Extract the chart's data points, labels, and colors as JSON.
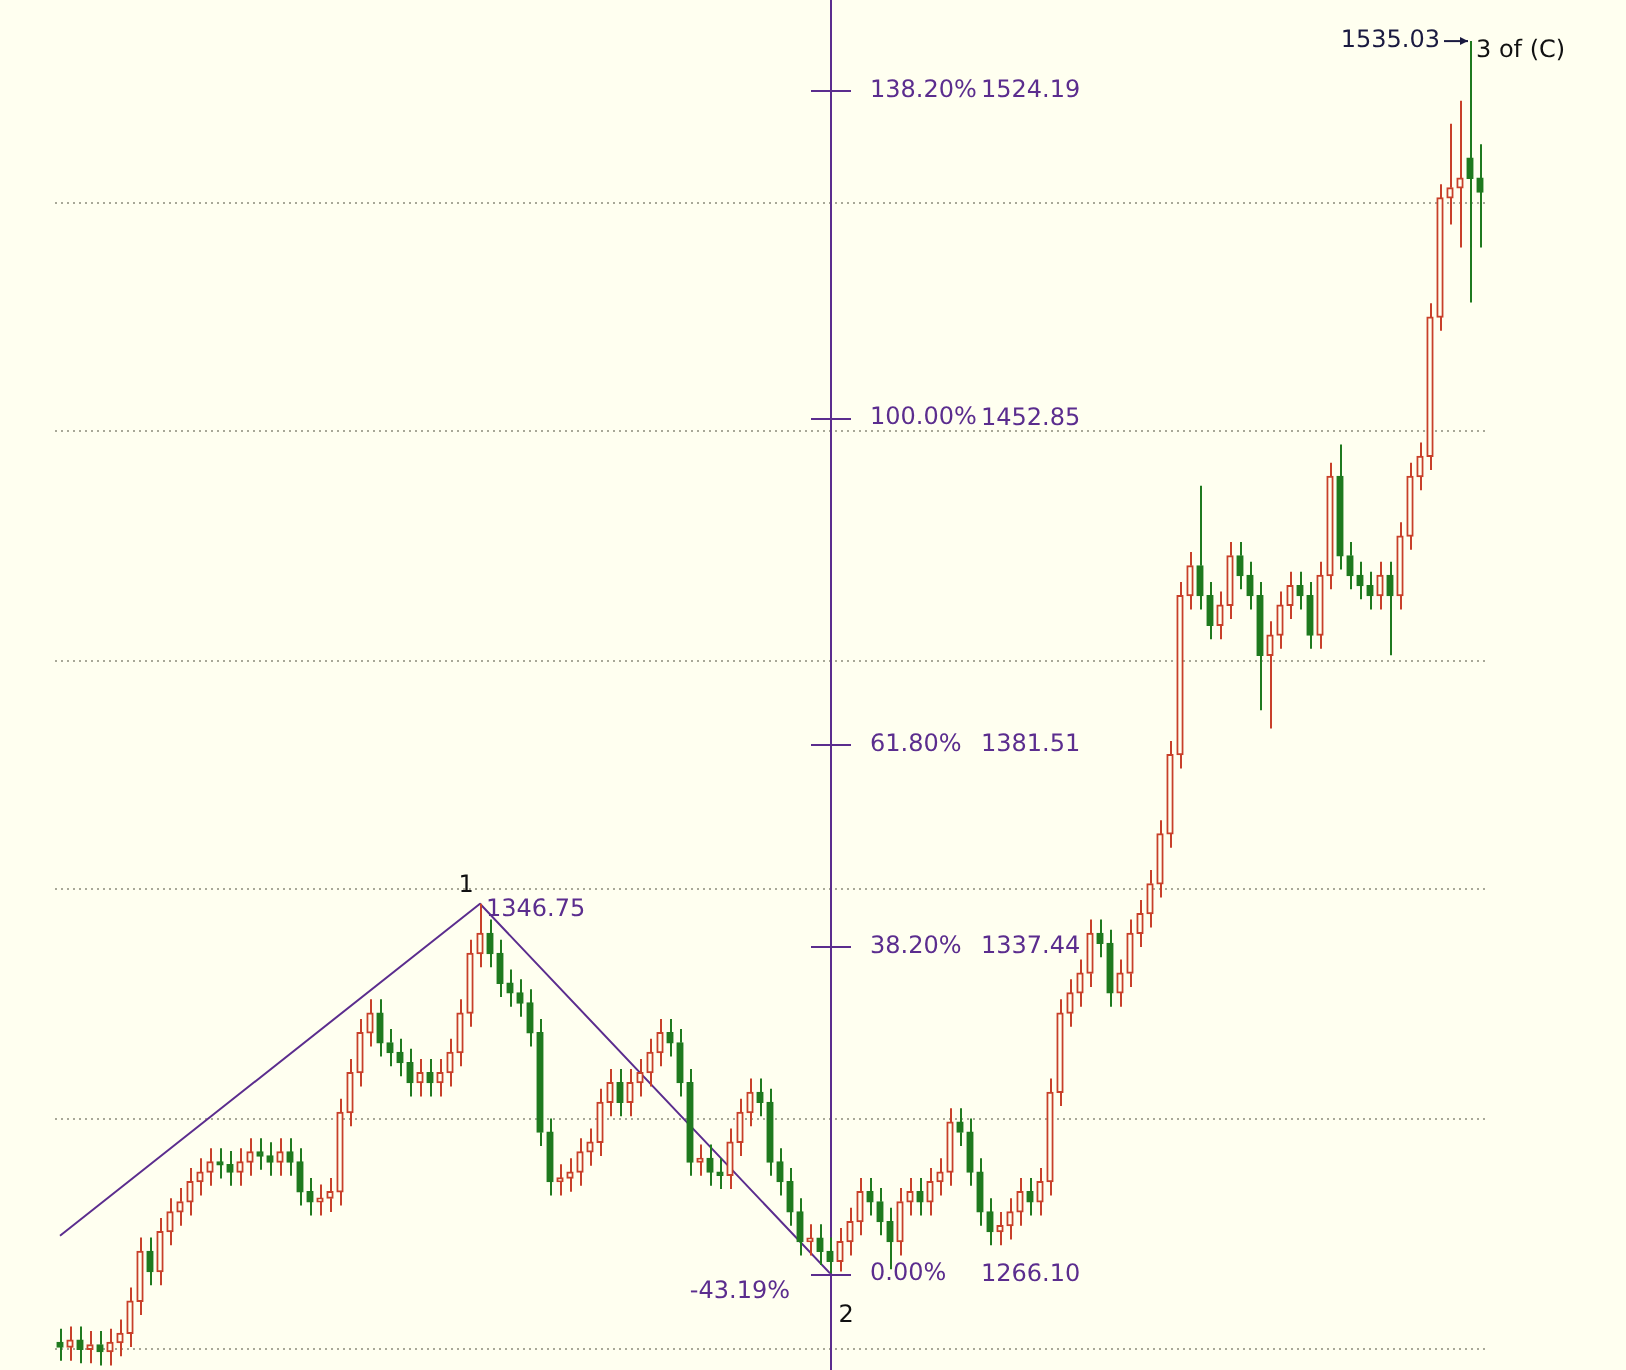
{
  "chart_data": {
    "type": "candlestick",
    "categories": [
      null,
      null,
      null,
      null,
      null,
      null,
      null,
      null,
      null,
      null,
      null,
      null,
      null,
      null,
      null,
      null,
      null,
      null,
      null,
      null,
      null,
      null,
      null,
      null,
      null,
      null,
      null,
      null,
      null,
      null,
      null,
      null,
      null,
      null,
      null,
      null,
      null,
      null,
      null,
      null,
      null,
      null,
      null,
      null,
      null,
      null,
      null,
      null,
      null,
      null,
      null,
      null,
      null,
      null,
      null,
      null,
      null,
      null,
      null,
      null,
      null,
      null,
      null,
      null,
      null,
      null,
      null,
      null,
      null,
      null,
      null,
      null,
      null,
      null,
      null,
      null,
      null,
      null,
      null,
      null,
      null,
      null,
      null,
      null,
      null,
      null,
      null,
      null,
      null,
      null,
      null,
      null,
      null,
      null,
      null,
      null,
      null,
      null,
      null,
      null,
      null,
      null,
      null,
      null,
      null,
      null,
      null,
      null,
      null,
      null,
      null,
      null,
      null,
      null,
      null,
      null,
      null,
      null,
      null,
      null,
      null,
      null,
      null,
      null,
      null,
      null,
      null,
      null,
      null,
      null,
      null,
      null,
      null,
      null,
      null,
      null,
      null,
      null,
      null,
      null,
      null,
      null,
      null
    ],
    "ohlc": [
      [
        1251.0,
        1254.0,
        1247.0,
        1250.0
      ],
      [
        1250.0,
        1254.5,
        1247.0,
        1251.5
      ],
      [
        1251.5,
        1254.5,
        1246.5,
        1249.5
      ],
      [
        1249.5,
        1253.5,
        1246.5,
        1250.5
      ],
      [
        1250.5,
        1253.5,
        1246.0,
        1249.0
      ],
      [
        1249.0,
        1254.0,
        1246.0,
        1251.0
      ],
      [
        1251.0,
        1256.0,
        1248.0,
        1253.0
      ],
      [
        1253.0,
        1263.0,
        1250.0,
        1260.0
      ],
      [
        1260.0,
        1273.9,
        1257.0,
        1270.9
      ],
      [
        1270.9,
        1273.9,
        1263.5,
        1266.5
      ],
      [
        1266.5,
        1278.2,
        1263.5,
        1275.2
      ],
      [
        1275.2,
        1282.5,
        1272.2,
        1279.5
      ],
      [
        1279.5,
        1284.7,
        1276.5,
        1281.7
      ],
      [
        1281.7,
        1289.1,
        1278.7,
        1286.1
      ],
      [
        1286.1,
        1291.2,
        1283.1,
        1288.2
      ],
      [
        1288.2,
        1293.4,
        1285.2,
        1290.4
      ],
      [
        1290.4,
        1293.4,
        1286.8,
        1289.8
      ],
      [
        1289.8,
        1292.8,
        1285.2,
        1288.2
      ],
      [
        1288.2,
        1293.4,
        1285.2,
        1290.4
      ],
      [
        1290.4,
        1295.6,
        1287.4,
        1292.6
      ],
      [
        1292.6,
        1295.6,
        1288.7,
        1291.7
      ],
      [
        1291.7,
        1294.7,
        1287.4,
        1290.4
      ],
      [
        1290.4,
        1295.6,
        1287.4,
        1292.6
      ],
      [
        1292.6,
        1295.6,
        1287.4,
        1290.4
      ],
      [
        1290.4,
        1293.4,
        1280.9,
        1283.9
      ],
      [
        1283.9,
        1286.9,
        1278.7,
        1281.7
      ],
      [
        1281.7,
        1285.5,
        1278.7,
        1282.5
      ],
      [
        1282.5,
        1286.9,
        1279.5,
        1283.9
      ],
      [
        1283.9,
        1304.2,
        1280.9,
        1301.2
      ],
      [
        1301.2,
        1312.9,
        1298.2,
        1309.9
      ],
      [
        1309.9,
        1321.6,
        1306.9,
        1318.6
      ],
      [
        1318.6,
        1325.9,
        1315.6,
        1322.9
      ],
      [
        1322.9,
        1325.9,
        1313.4,
        1316.4
      ],
      [
        1316.4,
        1319.4,
        1311.3,
        1314.3
      ],
      [
        1314.3,
        1317.3,
        1309.1,
        1312.1
      ],
      [
        1312.1,
        1315.1,
        1304.7,
        1307.7
      ],
      [
        1307.7,
        1312.9,
        1304.7,
        1309.9
      ],
      [
        1309.9,
        1312.9,
        1304.7,
        1307.7
      ],
      [
        1307.7,
        1312.9,
        1304.7,
        1309.9
      ],
      [
        1309.9,
        1317.3,
        1306.9,
        1314.3
      ],
      [
        1314.3,
        1325.9,
        1311.3,
        1322.9
      ],
      [
        1322.9,
        1338.9,
        1319.9,
        1335.9
      ],
      [
        1335.9,
        1346.75,
        1332.9,
        1340.3
      ],
      [
        1340.3,
        1343.3,
        1332.9,
        1335.9
      ],
      [
        1335.9,
        1338.9,
        1326.4,
        1329.4
      ],
      [
        1329.4,
        1332.4,
        1324.3,
        1327.3
      ],
      [
        1327.3,
        1330.3,
        1322.1,
        1325.1
      ],
      [
        1325.1,
        1328.1,
        1315.6,
        1318.6
      ],
      [
        1318.6,
        1321.6,
        1293.9,
        1296.9
      ],
      [
        1296.9,
        1299.9,
        1283.1,
        1286.1
      ],
      [
        1286.1,
        1289.9,
        1283.1,
        1286.9
      ],
      [
        1286.9,
        1291.2,
        1283.9,
        1288.2
      ],
      [
        1288.2,
        1295.6,
        1285.2,
        1292.6
      ],
      [
        1292.6,
        1297.7,
        1289.6,
        1294.7
      ],
      [
        1294.7,
        1306.4,
        1291.7,
        1303.4
      ],
      [
        1303.4,
        1310.7,
        1300.4,
        1307.7
      ],
      [
        1307.7,
        1310.7,
        1300.4,
        1303.4
      ],
      [
        1303.4,
        1310.7,
        1300.4,
        1307.7
      ],
      [
        1307.7,
        1312.9,
        1304.7,
        1309.9
      ],
      [
        1309.9,
        1317.3,
        1306.9,
        1314.3
      ],
      [
        1314.3,
        1321.6,
        1311.3,
        1318.6
      ],
      [
        1318.6,
        1321.6,
        1313.4,
        1316.4
      ],
      [
        1316.4,
        1319.4,
        1304.7,
        1307.7
      ],
      [
        1307.7,
        1310.7,
        1287.4,
        1290.4
      ],
      [
        1290.4,
        1294.2,
        1287.4,
        1291.2
      ],
      [
        1291.2,
        1294.2,
        1285.2,
        1288.2
      ],
      [
        1288.2,
        1291.2,
        1284.5,
        1287.5
      ],
      [
        1287.5,
        1297.7,
        1284.5,
        1294.7
      ],
      [
        1294.7,
        1304.2,
        1291.7,
        1301.2
      ],
      [
        1301.2,
        1308.6,
        1298.2,
        1305.6
      ],
      [
        1305.6,
        1308.6,
        1300.4,
        1303.4
      ],
      [
        1303.4,
        1306.4,
        1287.4,
        1290.4
      ],
      [
        1290.4,
        1293.4,
        1283.1,
        1286.1
      ],
      [
        1286.1,
        1289.1,
        1276.5,
        1279.5
      ],
      [
        1279.5,
        1282.5,
        1270.0,
        1273.0
      ],
      [
        1273.0,
        1276.8,
        1270.0,
        1273.8
      ],
      [
        1273.8,
        1276.8,
        1267.9,
        1270.9
      ],
      [
        1270.9,
        1273.9,
        1266.1,
        1268.7
      ],
      [
        1268.7,
        1276.0,
        1266.5,
        1273.0
      ],
      [
        1273.0,
        1280.4,
        1270.0,
        1277.4
      ],
      [
        1277.4,
        1286.9,
        1274.4,
        1283.9
      ],
      [
        1283.9,
        1286.9,
        1278.7,
        1281.7
      ],
      [
        1281.7,
        1284.7,
        1274.4,
        1277.4
      ],
      [
        1277.4,
        1280.4,
        1267.0,
        1273.0
      ],
      [
        1273.0,
        1284.7,
        1270.0,
        1281.7
      ],
      [
        1281.7,
        1286.9,
        1278.7,
        1283.9
      ],
      [
        1283.9,
        1286.9,
        1278.7,
        1281.7
      ],
      [
        1281.7,
        1289.1,
        1278.7,
        1286.1
      ],
      [
        1286.1,
        1291.2,
        1283.1,
        1288.2
      ],
      [
        1288.2,
        1302.1,
        1285.2,
        1299.1
      ],
      [
        1299.1,
        1302.1,
        1293.9,
        1296.9
      ],
      [
        1296.9,
        1299.9,
        1285.2,
        1288.2
      ],
      [
        1288.2,
        1291.2,
        1276.5,
        1279.5
      ],
      [
        1279.5,
        1282.5,
        1272.2,
        1275.2
      ],
      [
        1275.2,
        1279.5,
        1272.2,
        1276.5
      ],
      [
        1276.5,
        1282.5,
        1273.5,
        1279.5
      ],
      [
        1279.5,
        1286.9,
        1276.5,
        1283.9
      ],
      [
        1283.9,
        1286.9,
        1278.7,
        1281.7
      ],
      [
        1281.7,
        1289.1,
        1278.7,
        1286.1
      ],
      [
        1286.1,
        1308.6,
        1283.1,
        1305.6
      ],
      [
        1305.6,
        1325.9,
        1302.6,
        1322.9
      ],
      [
        1322.9,
        1330.3,
        1319.9,
        1327.3
      ],
      [
        1327.3,
        1334.6,
        1324.3,
        1331.6
      ],
      [
        1331.6,
        1343.3,
        1328.6,
        1340.3
      ],
      [
        1340.3,
        1343.3,
        1335.1,
        1338.1
      ],
      [
        1338.1,
        1341.1,
        1324.3,
        1327.3
      ],
      [
        1327.3,
        1334.6,
        1324.3,
        1331.6
      ],
      [
        1331.6,
        1343.3,
        1328.6,
        1340.3
      ],
      [
        1340.3,
        1347.6,
        1337.3,
        1344.6
      ],
      [
        1344.6,
        1354.1,
        1341.6,
        1351.1
      ],
      [
        1351.1,
        1365.0,
        1348.1,
        1362.0
      ],
      [
        1362.0,
        1382.3,
        1359.0,
        1379.3
      ],
      [
        1379.3,
        1417.0,
        1376.3,
        1414.0
      ],
      [
        1414.0,
        1423.5,
        1411.0,
        1420.5
      ],
      [
        1420.5,
        1438.0,
        1411.0,
        1414.0
      ],
      [
        1414.0,
        1417.0,
        1404.5,
        1407.5
      ],
      [
        1407.5,
        1414.9,
        1404.5,
        1411.9
      ],
      [
        1411.9,
        1425.7,
        1408.9,
        1422.7
      ],
      [
        1422.7,
        1425.7,
        1415.4,
        1418.4
      ],
      [
        1418.4,
        1421.4,
        1411.0,
        1414.0
      ],
      [
        1414.0,
        1417.0,
        1389.0,
        1401.0
      ],
      [
        1401.0,
        1408.4,
        1385.0,
        1405.4
      ],
      [
        1405.4,
        1414.9,
        1402.4,
        1411.9
      ],
      [
        1411.9,
        1419.2,
        1408.9,
        1416.2
      ],
      [
        1416.2,
        1419.2,
        1411.0,
        1414.0
      ],
      [
        1414.0,
        1417.0,
        1402.4,
        1405.4
      ],
      [
        1405.4,
        1421.4,
        1402.4,
        1418.4
      ],
      [
        1418.4,
        1443.0,
        1415.4,
        1440.0
      ],
      [
        1440.0,
        1447.0,
        1419.7,
        1422.7
      ],
      [
        1422.7,
        1425.7,
        1415.4,
        1418.4
      ],
      [
        1418.4,
        1421.4,
        1413.2,
        1416.2
      ],
      [
        1416.2,
        1419.2,
        1411.0,
        1414.0
      ],
      [
        1414.0,
        1421.4,
        1411.0,
        1418.4
      ],
      [
        1418.4,
        1421.4,
        1401.0,
        1414.0
      ],
      [
        1414.0,
        1430.0,
        1411.0,
        1427.0
      ],
      [
        1427.0,
        1443.0,
        1424.0,
        1440.0
      ],
      [
        1440.0,
        1447.4,
        1437.0,
        1444.4
      ],
      [
        1444.4,
        1477.8,
        1441.4,
        1474.8
      ],
      [
        1474.8,
        1503.8,
        1471.8,
        1500.8
      ],
      [
        1500.8,
        1517.0,
        1495.0,
        1503.0
      ],
      [
        1503.0,
        1522.0,
        1490.0,
        1505.1
      ],
      [
        1509.5,
        1535.03,
        1478.0,
        1505.1
      ],
      [
        1505.1,
        1512.5,
        1490.0,
        1502.1
      ]
    ],
    "series": [
      {
        "type": "line",
        "color": "#5b2d8e",
        "values": [
          1274.3,
          null,
          null,
          null,
          null,
          null,
          null,
          null,
          null,
          null,
          null,
          null,
          null,
          null,
          null,
          null,
          null,
          null,
          null,
          null,
          null,
          null,
          null,
          null,
          null,
          null,
          null,
          null,
          null,
          null,
          null,
          null,
          null,
          null,
          null,
          null,
          null,
          null,
          null,
          null,
          null,
          null,
          1346.75,
          null,
          null,
          null,
          null,
          null,
          null,
          null,
          null,
          null,
          null,
          null,
          null,
          null,
          null,
          null,
          null,
          null,
          null,
          null,
          null,
          null,
          null,
          null,
          null,
          null,
          null,
          null,
          null,
          null,
          null,
          null,
          null,
          null,
          null,
          1266.1,
          null,
          null,
          null,
          null,
          null,
          null,
          null,
          null,
          null,
          null,
          null,
          null,
          null,
          null,
          null,
          null,
          null,
          null,
          null,
          null,
          null,
          null,
          null,
          null,
          null,
          null,
          null,
          null,
          null,
          null,
          null,
          null,
          null,
          null,
          null,
          null,
          null,
          null,
          null,
          null,
          null,
          null,
          null,
          null,
          null,
          null,
          null,
          null,
          null,
          null,
          null,
          null,
          null,
          null,
          null,
          null,
          null,
          null,
          null,
          null,
          null,
          null,
          null,
          null,
          null
        ]
      }
    ],
    "ylim": [
      1245,
      1544
    ],
    "yticks": [
      {
        "value": 1266.1,
        "label": "1266.10"
      },
      1337.44,
      1381.51,
      1452.85,
      1524.19
    ],
    "legend": false,
    "ref_lines": [
      {
        "axis": "y",
        "value": 1250,
        "color": "#a8a898",
        "line_style": "dotted"
      },
      {
        "axis": "y",
        "value": 1300,
        "color": "#a8a898",
        "line_style": "dotted"
      },
      {
        "axis": "y",
        "value": 1350,
        "color": "#a8a898",
        "line_style": "dotted"
      },
      {
        "axis": "y",
        "value": 1400,
        "color": "#a8a898",
        "line_style": "dotted"
      },
      {
        "axis": "y",
        "value": 1450,
        "color": "#a8a898",
        "line_style": "dotted"
      },
      {
        "axis": "y",
        "value": 1500,
        "color": "#a8a898",
        "line_style": "dotted"
      }
    ],
    "annotations": [
      "1",
      "1346.75",
      "2",
      "-43.19%",
      "1535.03",
      "3 of (C)",
      "0.00%",
      "38.20%",
      "61.80%",
      "100.00%",
      "138.20%"
    ]
  }
}
